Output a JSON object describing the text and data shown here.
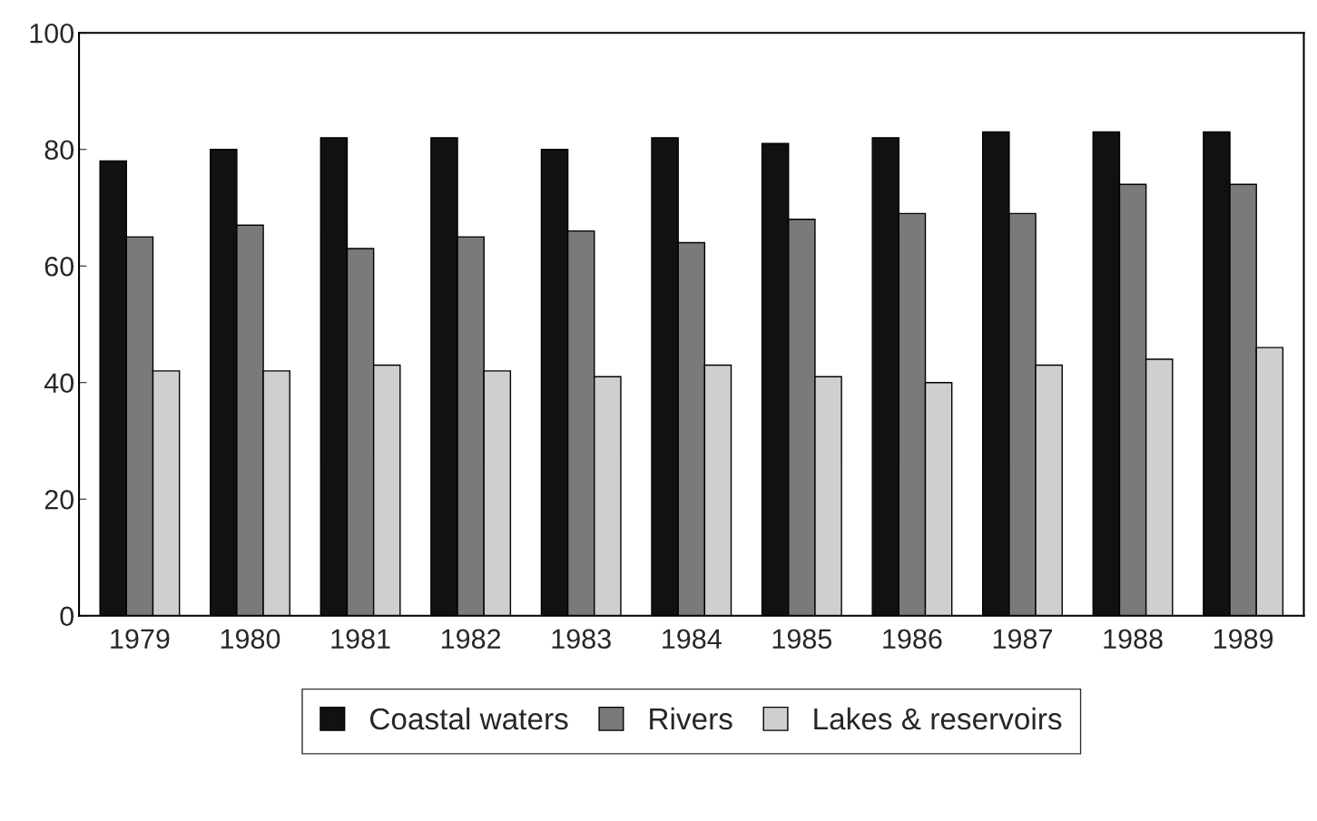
{
  "chart_data": {
    "type": "bar",
    "categories": [
      "1979",
      "1980",
      "1981",
      "1982",
      "1983",
      "1984",
      "1985",
      "1986",
      "1987",
      "1988",
      "1989"
    ],
    "series": [
      {
        "name": "Coastal waters",
        "color": "#111111",
        "values": [
          78,
          80,
          82,
          82,
          80,
          82,
          81,
          82,
          83,
          83,
          83
        ]
      },
      {
        "name": "Rivers",
        "color": "#7a7a7a",
        "values": [
          65,
          67,
          63,
          65,
          66,
          64,
          68,
          69,
          69,
          74,
          74
        ]
      },
      {
        "name": "Lakes & reservoirs",
        "color": "#cfcfcf",
        "values": [
          42,
          42,
          43,
          42,
          41,
          43,
          41,
          40,
          43,
          44,
          46
        ]
      }
    ],
    "ylim": [
      0,
      100
    ],
    "yticks": [
      0,
      20,
      40,
      60,
      80,
      100
    ],
    "grid": false,
    "legend": "bottom"
  }
}
